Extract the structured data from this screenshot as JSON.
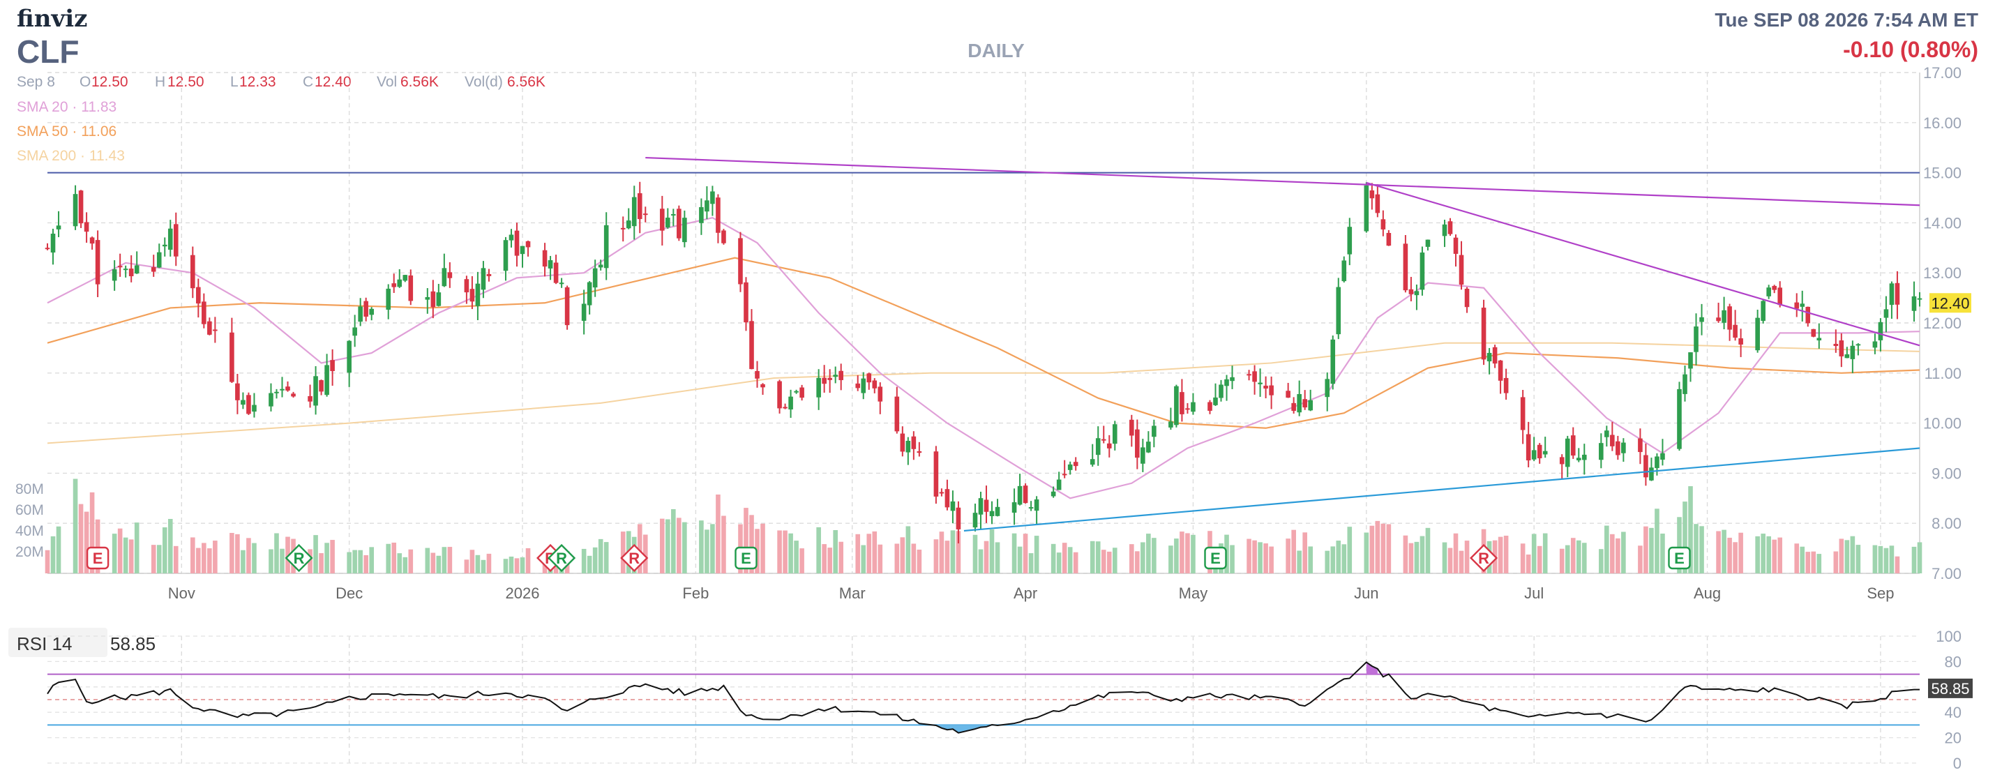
{
  "header": {
    "logo": "finviz",
    "ticker": "CLF",
    "timeframe": "DAILY",
    "datetime": "Tue SEP 08 2026 7:54 AM ET",
    "change": "-0.10 (0.80%)"
  },
  "ohlc": {
    "date": "Sep 8",
    "o_label": "O",
    "o": "12.50",
    "h_label": "H",
    "h": "12.50",
    "l_label": "L",
    "l": "12.33",
    "c_label": "C",
    "c": "12.40",
    "vol_label": "Vol",
    "vol": "6.56K",
    "vold_label": "Vol(d)",
    "vold": "6.56K"
  },
  "legend": [
    {
      "text": "SMA 20 · 11.83",
      "color": "#e0a0d8"
    },
    {
      "text": "SMA 50 · 11.06",
      "color": "#f2a05a"
    },
    {
      "text": "SMA 200 · 11.43",
      "color": "#f5d3a0"
    }
  ],
  "colors": {
    "up": "#2e9e4e",
    "down": "#d83545",
    "up_vol": "#9ed4ae",
    "down_vol": "#f2a6ae",
    "sma20": "#e0a0d8",
    "sma50": "#f2a05a",
    "sma200": "#f5d3a0",
    "trend_purple": "#b040c8",
    "trend_blue": "#2a9ad8",
    "hline": "#4a5aa8",
    "price_badge": "#f7e23a",
    "rsi_badge": "#444444",
    "earnings": "#1e9a4a",
    "dividend_r": "#d83545",
    "dividend_gr": "#1e9a4a"
  },
  "chart_data": [
    {
      "type": "candlestick",
      "title": "",
      "ylim": [
        7.0,
        17.0
      ],
      "y_ticks": [
        "17.00",
        "16.00",
        "15.00",
        "14.00",
        "13.00",
        "12.00",
        "11.00",
        "10.00",
        "9.00",
        "8.00",
        "7.00"
      ],
      "x_labels": [
        {
          "label": "Nov",
          "date": "2025-11-01"
        },
        {
          "label": "Dec",
          "date": "2025-12-01"
        },
        {
          "label": "2026",
          "date": "2026-01-01"
        },
        {
          "label": "Feb",
          "date": "2026-02-01"
        },
        {
          "label": "Mar",
          "date": "2026-03-01"
        },
        {
          "label": "Apr",
          "date": "2026-04-01"
        },
        {
          "label": "May",
          "date": "2026-05-01"
        },
        {
          "label": "Jun",
          "date": "2026-06-01"
        },
        {
          "label": "Jul",
          "date": "2026-07-01"
        },
        {
          "label": "Aug",
          "date": "2026-08-01"
        },
        {
          "label": "Sep",
          "date": "2026-09-01"
        }
      ],
      "last_price": "12.40",
      "close_path": [
        [
          "2025-10-08",
          13.4
        ],
        [
          "2025-10-13",
          14.6
        ],
        [
          "2025-10-17",
          13.0
        ],
        [
          "2025-10-21",
          12.9
        ],
        [
          "2025-10-27",
          13.2
        ],
        [
          "2025-10-30",
          13.9
        ],
        [
          "2025-11-03",
          12.5
        ],
        [
          "2025-11-07",
          11.6
        ],
        [
          "2025-11-10",
          10.9
        ],
        [
          "2025-11-14",
          10.2
        ],
        [
          "2025-11-19",
          10.5
        ],
        [
          "2025-11-24",
          10.6
        ],
        [
          "2025-11-28",
          11.0
        ],
        [
          "2025-12-01",
          11.9
        ],
        [
          "2025-12-05",
          12.5
        ],
        [
          "2025-12-10",
          12.8
        ],
        [
          "2025-12-15",
          12.3
        ],
        [
          "2025-12-19",
          13.0
        ],
        [
          "2025-12-23",
          12.7
        ],
        [
          "2025-12-29",
          13.7
        ],
        [
          "2026-01-05",
          13.2
        ],
        [
          "2026-01-08",
          12.6
        ],
        [
          "2026-01-09",
          11.9
        ],
        [
          "2026-01-13",
          12.7
        ],
        [
          "2026-01-16",
          13.7
        ],
        [
          "2026-01-21",
          14.4
        ],
        [
          "2026-01-26",
          14.1
        ],
        [
          "2026-01-30",
          13.9
        ],
        [
          "2026-02-04",
          14.4
        ],
        [
          "2026-02-09",
          12.6
        ],
        [
          "2026-02-11",
          10.9
        ],
        [
          "2026-02-17",
          10.3
        ],
        [
          "2026-02-23",
          10.7
        ],
        [
          "2026-03-02",
          10.9
        ],
        [
          "2026-03-06",
          10.3
        ],
        [
          "2026-03-10",
          9.6
        ],
        [
          "2026-03-16",
          8.7
        ],
        [
          "2026-03-20",
          8.1
        ],
        [
          "2026-03-24",
          8.3
        ],
        [
          "2026-03-30",
          8.5
        ],
        [
          "2026-04-03",
          8.4
        ],
        [
          "2026-04-07",
          9.0
        ],
        [
          "2026-04-13",
          9.5
        ],
        [
          "2026-04-17",
          9.8
        ],
        [
          "2026-04-22",
          9.3
        ],
        [
          "2026-04-28",
          10.5
        ],
        [
          "2026-05-04",
          10.2
        ],
        [
          "2026-05-08",
          10.9
        ],
        [
          "2026-05-13",
          10.7
        ],
        [
          "2026-05-18",
          10.6
        ],
        [
          "2026-05-21",
          10.3
        ],
        [
          "2026-05-25",
          11.0
        ],
        [
          "2026-05-27",
          12.5
        ],
        [
          "2026-05-29",
          13.7
        ],
        [
          "2026-06-01",
          14.8
        ],
        [
          "2026-06-04",
          14.1
        ],
        [
          "2026-06-09",
          12.3
        ],
        [
          "2026-06-12",
          13.8
        ],
        [
          "2026-06-15",
          13.9
        ],
        [
          "2026-06-19",
          12.4
        ],
        [
          "2026-06-23",
          11.2
        ],
        [
          "2026-06-26",
          10.4
        ],
        [
          "2026-06-30",
          9.4
        ],
        [
          "2026-07-03",
          9.5
        ],
        [
          "2026-07-09",
          9.4
        ],
        [
          "2026-07-14",
          9.8
        ],
        [
          "2026-07-17",
          9.4
        ],
        [
          "2026-07-21",
          9.1
        ],
        [
          "2026-07-24",
          9.5
        ],
        [
          "2026-07-28",
          10.8
        ],
        [
          "2026-07-31",
          12.3
        ],
        [
          "2026-08-04",
          12.0
        ],
        [
          "2026-08-07",
          11.5
        ],
        [
          "2026-08-11",
          12.6
        ],
        [
          "2026-08-14",
          12.4
        ],
        [
          "2026-08-19",
          12.1
        ],
        [
          "2026-08-24",
          11.3
        ],
        [
          "2026-08-27",
          11.6
        ],
        [
          "2026-08-31",
          11.5
        ],
        [
          "2026-09-03",
          12.6
        ],
        [
          "2026-09-08",
          12.4
        ]
      ],
      "sma20": [
        [
          "2025-10-08",
          12.4
        ],
        [
          "2025-10-22",
          13.2
        ],
        [
          "2025-11-03",
          13.0
        ],
        [
          "2025-11-14",
          12.3
        ],
        [
          "2025-11-26",
          11.2
        ],
        [
          "2025-12-05",
          11.4
        ],
        [
          "2025-12-17",
          12.2
        ],
        [
          "2025-12-31",
          12.9
        ],
        [
          "2026-01-12",
          13.0
        ],
        [
          "2026-01-23",
          13.8
        ],
        [
          "2026-02-04",
          14.1
        ],
        [
          "2026-02-12",
          13.6
        ],
        [
          "2026-02-23",
          12.2
        ],
        [
          "2026-03-06",
          11.0
        ],
        [
          "2026-03-18",
          10.0
        ],
        [
          "2026-03-31",
          9.1
        ],
        [
          "2026-04-09",
          8.5
        ],
        [
          "2026-04-20",
          8.8
        ],
        [
          "2026-04-30",
          9.5
        ],
        [
          "2026-05-12",
          10.0
        ],
        [
          "2026-05-25",
          10.6
        ],
        [
          "2026-06-03",
          12.1
        ],
        [
          "2026-06-12",
          12.8
        ],
        [
          "2026-06-22",
          12.7
        ],
        [
          "2026-07-02",
          11.4
        ],
        [
          "2026-07-14",
          10.1
        ],
        [
          "2026-07-24",
          9.4
        ],
        [
          "2026-08-03",
          10.2
        ],
        [
          "2026-08-14",
          11.8
        ],
        [
          "2026-08-28",
          11.8
        ],
        [
          "2026-09-08",
          11.83
        ]
      ],
      "sma50": [
        [
          "2025-10-08",
          11.6
        ],
        [
          "2025-10-30",
          12.3
        ],
        [
          "2025-11-15",
          12.4
        ],
        [
          "2025-12-15",
          12.3
        ],
        [
          "2026-01-05",
          12.4
        ],
        [
          "2026-01-20",
          12.8
        ],
        [
          "2026-02-08",
          13.3
        ],
        [
          "2026-02-25",
          12.9
        ],
        [
          "2026-03-12",
          12.2
        ],
        [
          "2026-03-27",
          11.5
        ],
        [
          "2026-04-14",
          10.5
        ],
        [
          "2026-04-28",
          10.0
        ],
        [
          "2026-05-14",
          9.9
        ],
        [
          "2026-05-28",
          10.2
        ],
        [
          "2026-06-12",
          11.1
        ],
        [
          "2026-06-26",
          11.4
        ],
        [
          "2026-07-16",
          11.3
        ],
        [
          "2026-08-05",
          11.1
        ],
        [
          "2026-08-25",
          11.0
        ],
        [
          "2026-09-08",
          11.06
        ]
      ],
      "sma200": [
        [
          "2025-10-08",
          9.6
        ],
        [
          "2025-12-01",
          10.0
        ],
        [
          "2026-01-15",
          10.4
        ],
        [
          "2026-02-15",
          10.9
        ],
        [
          "2026-03-15",
          11.0
        ],
        [
          "2026-04-15",
          11.0
        ],
        [
          "2026-05-15",
          11.2
        ],
        [
          "2026-06-15",
          11.6
        ],
        [
          "2026-07-15",
          11.6
        ],
        [
          "2026-08-15",
          11.5
        ],
        [
          "2026-09-08",
          11.43
        ]
      ],
      "trendlines": [
        {
          "from": [
            "2026-01-23",
            15.3
          ],
          "to": [
            "2026-09-08",
            14.35
          ],
          "color": "#b040c8"
        },
        {
          "from": [
            "2026-06-01",
            14.8
          ],
          "to": [
            "2026-09-08",
            11.55
          ],
          "color": "#b040c8"
        },
        {
          "from": [
            "2026-03-21",
            7.85
          ],
          "to": [
            "2026-09-08",
            9.5
          ],
          "color": "#2a9ad8"
        }
      ],
      "horizontal_lines": [
        15.0
      ],
      "volume_ticks": [
        "80M",
        "60M",
        "40M",
        "20M"
      ],
      "volume_profile": [
        [
          "2025-10-08",
          25
        ],
        [
          "2025-10-12",
          70
        ],
        [
          "2025-10-20",
          40
        ],
        [
          "2025-11-07",
          30
        ],
        [
          "2025-12-15",
          20
        ],
        [
          "2026-01-09",
          15
        ],
        [
          "2026-01-23",
          35
        ],
        [
          "2026-02-09",
          55
        ],
        [
          "2026-02-20",
          30
        ],
        [
          "2026-03-20",
          30
        ],
        [
          "2026-04-10",
          25
        ],
        [
          "2026-05-27",
          30
        ],
        [
          "2026-06-05",
          35
        ],
        [
          "2026-07-01",
          25
        ],
        [
          "2026-07-22",
          35
        ],
        [
          "2026-07-28",
          75
        ],
        [
          "2026-08-05",
          30
        ],
        [
          "2026-09-08",
          20
        ]
      ],
      "events": [
        {
          "date": "2025-10-17",
          "code": "E",
          "style": "red"
        },
        {
          "date": "2025-11-22",
          "code": "R",
          "style": "green"
        },
        {
          "date": "2026-01-06",
          "code": "R",
          "style": "red"
        },
        {
          "date": "2026-01-08",
          "code": "R",
          "style": "green"
        },
        {
          "date": "2026-01-21",
          "code": "R",
          "style": "red"
        },
        {
          "date": "2026-02-10",
          "code": "E",
          "style": "green"
        },
        {
          "date": "2026-05-05",
          "code": "E",
          "style": "green"
        },
        {
          "date": "2026-06-22",
          "code": "R",
          "style": "red"
        },
        {
          "date": "2026-07-27",
          "code": "E",
          "style": "green"
        }
      ]
    },
    {
      "type": "line",
      "title": "",
      "series_label": "RSI 14",
      "value": "58.85",
      "ylim": [
        0,
        100
      ],
      "y_ticks": [
        "100",
        "80",
        "60",
        "40",
        "20",
        "0"
      ],
      "levels": [
        70,
        50,
        30
      ],
      "rsi_path": [
        [
          "2025-10-08",
          55
        ],
        [
          "2025-10-12",
          72
        ],
        [
          "2025-10-15",
          49
        ],
        [
          "2025-10-22",
          52
        ],
        [
          "2025-10-30",
          57
        ],
        [
          "2025-11-03",
          45
        ],
        [
          "2025-11-10",
          36
        ],
        [
          "2025-11-17",
          38
        ],
        [
          "2025-11-24",
          42
        ],
        [
          "2025-12-01",
          51
        ],
        [
          "2025-12-10",
          55
        ],
        [
          "2025-12-18",
          52
        ],
        [
          "2025-12-29",
          56
        ],
        [
          "2026-01-05",
          50
        ],
        [
          "2026-01-09",
          40
        ],
        [
          "2026-01-14",
          51
        ],
        [
          "2026-01-23",
          62
        ],
        [
          "2026-01-30",
          55
        ],
        [
          "2026-02-06",
          60
        ],
        [
          "2026-02-10",
          38
        ],
        [
          "2026-02-16",
          35
        ],
        [
          "2026-02-23",
          43
        ],
        [
          "2026-03-02",
          42
        ],
        [
          "2026-03-10",
          35
        ],
        [
          "2026-03-17",
          28
        ],
        [
          "2026-03-21",
          24
        ],
        [
          "2026-03-28",
          30
        ],
        [
          "2026-04-06",
          41
        ],
        [
          "2026-04-14",
          52
        ],
        [
          "2026-04-20",
          57
        ],
        [
          "2026-04-26",
          50
        ],
        [
          "2026-05-05",
          53
        ],
        [
          "2026-05-14",
          51
        ],
        [
          "2026-05-22",
          47
        ],
        [
          "2026-05-27",
          63
        ],
        [
          "2026-06-01",
          77
        ],
        [
          "2026-06-05",
          68
        ],
        [
          "2026-06-09",
          52
        ],
        [
          "2026-06-15",
          53
        ],
        [
          "2026-06-22",
          44
        ],
        [
          "2026-06-30",
          35
        ],
        [
          "2026-07-08",
          40
        ],
        [
          "2026-07-16",
          37
        ],
        [
          "2026-07-22",
          33
        ],
        [
          "2026-07-28",
          60
        ],
        [
          "2026-08-04",
          57
        ],
        [
          "2026-08-12",
          58
        ],
        [
          "2026-08-20",
          51
        ],
        [
          "2026-08-25",
          44
        ],
        [
          "2026-08-31",
          50
        ],
        [
          "2026-09-04",
          56
        ],
        [
          "2026-09-08",
          58.85
        ]
      ]
    }
  ]
}
